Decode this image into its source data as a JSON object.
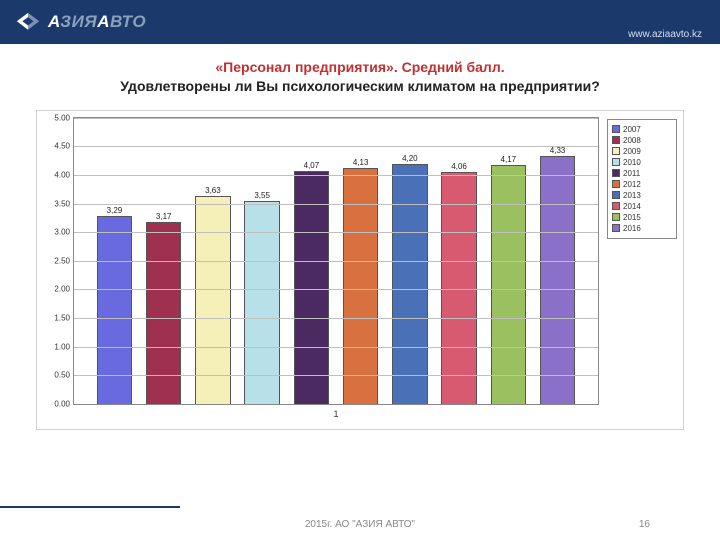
{
  "header": {
    "logo_prefix": "А",
    "logo_mid": "ЗИЯ",
    "logo_prefix2": "А",
    "logo_suffix": "ВТО",
    "url": "www.aziaavto.kz"
  },
  "title": {
    "line1": "«Персонал предприятия». Средний балл.",
    "line2": "Удовлетворены ли Вы психологическим климатом на предприятии?"
  },
  "chart": {
    "type": "bar",
    "x_label": "1",
    "ylim_min": 0.0,
    "ylim_max": 5.0,
    "ytick_step": 0.5,
    "yticks": [
      "0.00",
      "0.50",
      "1.00",
      "1.50",
      "2.00",
      "2.50",
      "3.00",
      "3.50",
      "4.00",
      "4.50",
      "5.00"
    ],
    "grid_color": "#bfbfbf",
    "plot_border_color": "#888888",
    "background_color": "#ffffff",
    "bar_border_color": "#555555",
    "value_fontsize": 8,
    "tick_fontsize": 8,
    "series": [
      {
        "year": "2007",
        "value": 3.29,
        "label": "3,29",
        "color": "#6a6ae0"
      },
      {
        "year": "2008",
        "value": 3.17,
        "label": "3,17",
        "color": "#a03050"
      },
      {
        "year": "2009",
        "value": 3.63,
        "label": "3,63",
        "color": "#f5f0b8"
      },
      {
        "year": "2010",
        "value": 3.55,
        "label": "3,55",
        "color": "#b8e0e8"
      },
      {
        "year": "2011",
        "value": 4.07,
        "label": "4,07",
        "color": "#4a2a60"
      },
      {
        "year": "2012",
        "value": 4.13,
        "label": "4,13",
        "color": "#d87040"
      },
      {
        "year": "2013",
        "value": 4.2,
        "label": "4,20",
        "color": "#4a70b8"
      },
      {
        "year": "2014",
        "value": 4.06,
        "label": "4,06",
        "color": "#d85a70"
      },
      {
        "year": "2015",
        "value": 4.17,
        "label": "4,17",
        "color": "#9ac060"
      },
      {
        "year": "2016",
        "value": 4.33,
        "label": "4,33",
        "color": "#8a70c8"
      }
    ]
  },
  "footer": {
    "text": "2015г. АО \"АЗИЯ АВТО\"",
    "page_number": "16"
  }
}
